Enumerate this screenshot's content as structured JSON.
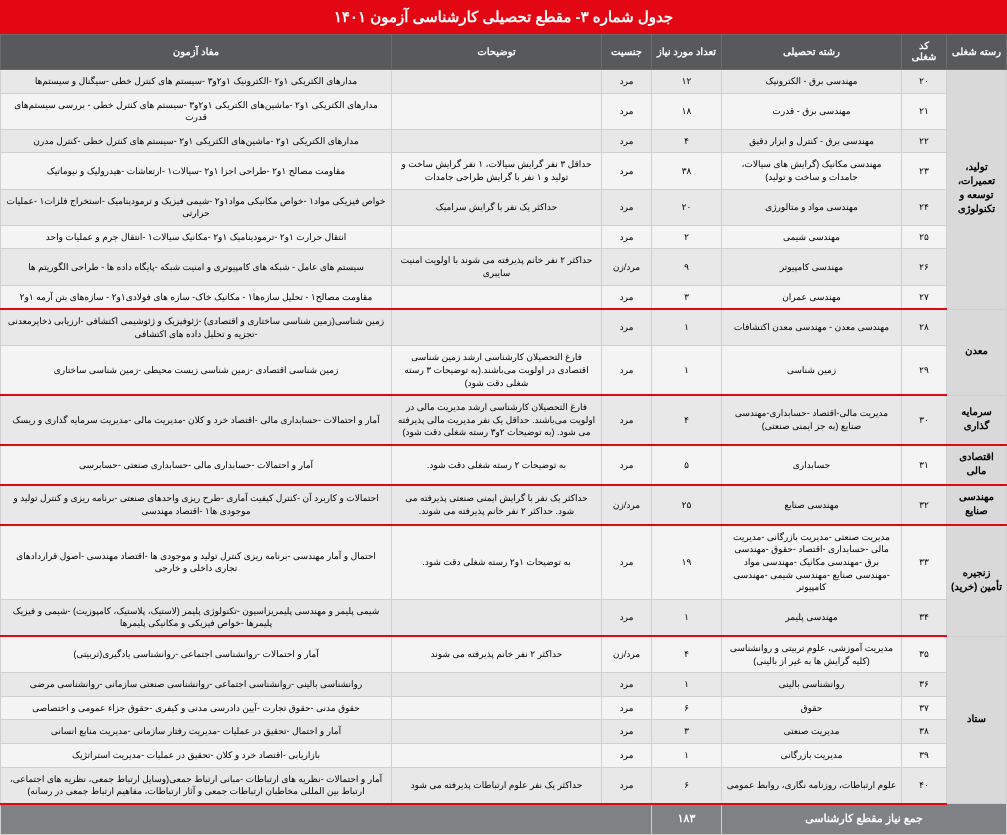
{
  "title": "جدول شماره ۳- مقطع تحصیلی کارشناسی آزمون ۱۴۰۱",
  "headers": {
    "group": "رسته شغلی",
    "code": "کد شغلی",
    "major": "رشته تحصیلی",
    "count": "تعداد مورد نیاز",
    "gender": "جنسیت",
    "desc": "توضیحات",
    "mafad": "مفاد آزمون"
  },
  "total": {
    "label": "جمع نیاز مقطع کارشناسی",
    "value": "۱۸۳"
  },
  "groups": [
    {
      "name": "تولید، تعمیرات، توسعه و تکنولوژی",
      "rows": [
        {
          "code": "۲۰",
          "major": "مهندسی برق - الکترونیک",
          "count": "۱۲",
          "gender": "مرد",
          "desc": "",
          "mafad": "مدارهای الکتریکی ۱و۲ -الکترونیک ۱و۲و۳ -سیستم های کنترل خطی -سیگنال و سیستم‌ها"
        },
        {
          "code": "۲۱",
          "major": "مهندسی برق - قدرت",
          "count": "۱۸",
          "gender": "مرد",
          "desc": "",
          "mafad": "مدارهای الکتریکی ۱و۲ -ماشین‌های الکتریکی ۱و۲و۳ -سیستم های کنترل خطی - بررسی سیستم‌های قدرت"
        },
        {
          "code": "۲۲",
          "major": "مهندسی برق - کنترل و ابزار دقیق",
          "count": "۴",
          "gender": "مرد",
          "desc": "",
          "mafad": "مدارهای الکتریکی ۱و۲ -ماشین‌های الکتریکی ۱و۲ -سیستم های کنترل خطی -کنترل مدرن"
        },
        {
          "code": "۲۳",
          "major": "مهندسی مکانیک (گرایش های سیالات، جامدات و ساخت و تولید)",
          "count": "۳۸",
          "gender": "مرد",
          "desc": "حداقل ۳ نفر گرایش سیالات، ۱ نفر گرایش ساخت و تولید و ۱ نفر با گرایش طراحی جامدات",
          "mafad": "مقاومت مصالح ۱و۲ -طراحی اجزا ۱و۲ -سیالات۱ -ارتعاشات -هیدرولیک و نیوماتیک"
        },
        {
          "code": "۲۴",
          "major": "مهندسی مواد و متالورژی",
          "count": "۲۰",
          "gender": "مرد",
          "desc": "حداکثر یک نفر با گرایش سرامیک",
          "mafad": "خواص فیزیکی مواد۱ -خواص مکانیکی مواد۱و۲ -شیمی فیزیک و ترمودینامیک -استخراج فلزات۱ -عملیات حرارتی"
        },
        {
          "code": "۲۵",
          "major": "مهندسی شیمی",
          "count": "۲",
          "gender": "مرد",
          "desc": "",
          "mafad": "انتقال حرارت ۱و۲ -ترمودینامیک ۱و۲ -مکانیک سیالات۱ -انتقال جرم و عملیات واحد"
        },
        {
          "code": "۲۶",
          "major": "مهندسی کامپیوتر",
          "count": "۹",
          "gender": "مرد/زن",
          "desc": "حداکثر ۲ نفر خانم پذیرفته می شوند با اولویت امنیت سایبری",
          "mafad": "سیستم های عامل - شبکه های کامپیوتری و امنیت شبکه -پایگاه داده ها - طراحی الگوریتم ها"
        },
        {
          "code": "۲۷",
          "major": "مهندسی عمران",
          "count": "۳",
          "gender": "مرد",
          "desc": "",
          "mafad": "مقاومت مصالح۱ - تحلیل سازه‌ها۱ - مکانیک خاک- سازه های فولادی۱و۲ - سازه‌های بتن آرمه ۱و۲"
        }
      ]
    },
    {
      "name": "معدن",
      "rows": [
        {
          "code": "۲۸",
          "major": "مهندسی معدن - مهندسی معدن اکتشافات",
          "count": "۱",
          "gender": "مرد",
          "desc": "",
          "mafad": "زمین شناسی(زمین شناسی ساختاری و اقتصادی) -ژئوفیزیک و ژئوشیمی اکتشافی -ارزیابی ذخایرمعدنی -تجزیه و تحلیل داده های اکتشافی"
        },
        {
          "code": "۲۹",
          "major": "زمین شناسی",
          "count": "۱",
          "gender": "مرد",
          "desc": "فارغ التحصیلان کارشناسی ارشد زمین شناسی اقتصادی در اولویت می‌باشند.(به توضیحات ۳ رسته شغلی دقت شود)",
          "mafad": "زمین شناسی اقتصادی -زمین شناسی زیست محیطی -زمین شناسی ساختاری"
        }
      ]
    },
    {
      "name": "سرمایه گذاری",
      "rows": [
        {
          "code": "۳۰",
          "major": "مدیریت مالی-اقتصاد -حسابداری-مهندسی صنایع (به جز ایمنی صنعتی)",
          "count": "۴",
          "gender": "مرد",
          "desc": "فارغ التحصیلان کارشناسی ارشد مدیریت مالی در اولویت می‌باشند. حداقل یک نفر مدیریت مالی پذیرفته می شود. (به توضیحات ۲و۳ رسته شغلی دقت شود)",
          "mafad": "آمار و احتمالات -حسابداری مالی -اقتصاد خرد و کلان -مدیریت مالی -مدیریت سرمایه گذاری و ریسک"
        }
      ]
    },
    {
      "name": "اقتصادی مالی",
      "rows": [
        {
          "code": "۳۱",
          "major": "حسابداری",
          "count": "۵",
          "gender": "مرد",
          "desc": "به توضیحات ۲ رسته شغلی دقت شود.",
          "mafad": "آمار و احتمالات -حسابداری مالی -حسابداری صنعتی -حسابرسی"
        }
      ]
    },
    {
      "name": "مهندسی صنایع",
      "rows": [
        {
          "code": "۳۲",
          "major": "مهندسی صنایع",
          "count": "۲۵",
          "gender": "مرد/زن",
          "desc": "حداکثر یک نفر با گرایش ایمنی صنعتی پذیرفته می شود. حداکثر ۲ نفر خانم پذیرفته می شوند.",
          "mafad": "احتمالات و کاربرد آن -کنترل کیفیت آماری -طرح ریزی واحدهای صنعتی -برنامه ریزی و کنترل تولید و موجودی ها۱ -اقتصاد مهندسی"
        }
      ]
    },
    {
      "name": "زنجیره تأمین (خرید)",
      "rows": [
        {
          "code": "۳۳",
          "major": "مدیریت صنعتی -مدیریت بازرگانی -مدیریت مالی -حسابداری -اقتصاد -حقوق -مهندسی برق -مهندسی مکانیک -مهندسی مواد -مهندسی صنایع -مهندسی شیمی -مهندسی کامپیوتر",
          "count": "۱۹",
          "gender": "مرد",
          "desc": "به توضیحات ۱و۲ رسته شغلی دقت شود.",
          "mafad": "احتمال و آمار مهندسی -برنامه ریزی کنترل تولید و موجودی ها -اقتصاد مهندسی -اصول قراردادهای تجاری داخلی و خارجی"
        },
        {
          "code": "۳۴",
          "major": "مهندسی پلیمر",
          "count": "۱",
          "gender": "مرد",
          "desc": "",
          "mafad": "شیمی پلیمر و مهندسی پلیمریزاسیون -تکنولوژی پلیمر (لاستیک، پلاستیک، کامپوزیت) -شیمی و فیزیک پلیمرها -خواص فیزیکی و مکانیکی پلیمرها"
        }
      ]
    },
    {
      "name": "ستاد",
      "rows": [
        {
          "code": "۳۵",
          "major": "مدیریت آموزشی، علوم تربیتی و روانشناسی (کلیه گرایش ها به غیر از بالینی)",
          "count": "۴",
          "gender": "مرد/زن",
          "desc": "حداکثر ۲ نفر خانم پذیرفته می شوند",
          "mafad": "آمار و احتمالات -روانشناسی اجتماعی -روانشناسی یادگیری(تربیتی)"
        },
        {
          "code": "۳۶",
          "major": "روانشناسی بالینی",
          "count": "۱",
          "gender": "مرد",
          "desc": "",
          "mafad": "روانشناسی بالینی -روانشناسی اجتماعی -روانشناسی صنعتی سازمانی -روانشناسی مرضی"
        },
        {
          "code": "۳۷",
          "major": "حقوق",
          "count": "۶",
          "gender": "مرد",
          "desc": "",
          "mafad": "حقوق مدنی -حقوق تجارت -آیین دادرسی مدنی و کیفری -حقوق جزاء عمومی و اختصاصی"
        },
        {
          "code": "۳۸",
          "major": "مدیریت صنعتی",
          "count": "۳",
          "gender": "مرد",
          "desc": "",
          "mafad": "آمار و احتمال -تحقیق در عملیات -مدیریت رفتار سازمانی -مدیریت منابع انسانی"
        },
        {
          "code": "۳۹",
          "major": "مدیریت بازرگانی",
          "count": "۱",
          "gender": "مرد",
          "desc": "",
          "mafad": "بازاریابی -اقتصاد خرد و کلان -تحقیق در عملیات -مدیریت استراتژیک"
        },
        {
          "code": "۴۰",
          "major": "علوم ارتباطات، روزنامه نگاری، روابط عمومی",
          "count": "۶",
          "gender": "مرد",
          "desc": "حداکثر یک نفر علوم ارتباطات پذیرفته می شود",
          "mafad": "آمار و احتمالات -نظریه های ارتباطات -مبانی ارتباط جمعی(وسایل ارتباط جمعی، نظریه های اجتماعی، ارتباط بین المللی مخاطبان ارتباطات جمعی و آثار ارتباطات، مفاهیم ارتباط جمعی در رسانه)"
        }
      ]
    }
  ]
}
